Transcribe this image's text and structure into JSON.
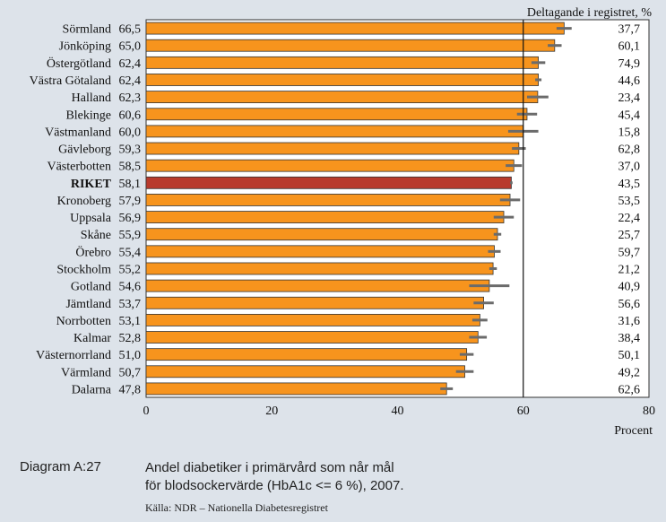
{
  "caption": {
    "label": "Diagram A:27",
    "title_line1": "Andel diabetiker i primärvård som når mål",
    "title_line2": "för blodsockervärde (HbA1c <= 6 %), 2007.",
    "source": "Källa: NDR – Nationella Diabetesregistret"
  },
  "chart_data": {
    "type": "bar",
    "orientation": "horizontal",
    "title": "",
    "xlabel": "Procent",
    "right_column_header": "Deltagande i registret, %",
    "xlim": [
      0,
      80
    ],
    "xticks": [
      "0",
      "20",
      "40",
      "60",
      "80"
    ],
    "reference_line": 60,
    "colors": {
      "bar": "#f7941d",
      "highlight": "#b83a2c",
      "error": "#6b6b6b",
      "background": "#ffffff"
    },
    "highlight_category": "RIKET",
    "categories": [
      "Sörmland",
      "Jönköping",
      "Östergötland",
      "Västra Götaland",
      "Halland",
      "Blekinge",
      "Västmanland",
      "Gävleborg",
      "Västerbotten",
      "RIKET",
      "Kronoberg",
      "Uppsala",
      "Skåne",
      "Örebro",
      "Stockholm",
      "Gotland",
      "Jämtland",
      "Norrbotten",
      "Kalmar",
      "Västernorrland",
      "Värmland",
      "Dalarna"
    ],
    "value_labels": [
      "66,5",
      "65,0",
      "62,4",
      "62,4",
      "62,3",
      "60,6",
      "60,0",
      "59,3",
      "58,5",
      "58,1",
      "57,9",
      "56,9",
      "55,9",
      "55,4",
      "55,2",
      "54,6",
      "53,7",
      "53,1",
      "52,8",
      "51,0",
      "50,7",
      "47,8"
    ],
    "values": [
      66.5,
      65.0,
      62.4,
      62.4,
      62.3,
      60.6,
      60.0,
      59.3,
      58.5,
      58.1,
      57.9,
      56.9,
      55.9,
      55.4,
      55.2,
      54.6,
      53.7,
      53.1,
      52.8,
      51.0,
      50.7,
      47.8
    ],
    "ci_low": [
      65.3,
      63.9,
      61.3,
      61.9,
      60.6,
      59.0,
      57.6,
      58.2,
      57.2,
      57.9,
      56.3,
      55.3,
      55.3,
      54.4,
      54.6,
      51.4,
      52.1,
      51.9,
      51.4,
      49.9,
      49.3,
      46.8
    ],
    "ci_high": [
      67.7,
      66.1,
      63.5,
      62.9,
      64.0,
      62.2,
      62.4,
      60.4,
      59.8,
      58.3,
      59.5,
      58.5,
      56.5,
      56.4,
      55.8,
      57.8,
      55.3,
      54.3,
      54.2,
      52.1,
      52.1,
      48.8
    ],
    "participation_labels": [
      "37,7",
      "60,1",
      "74,9",
      "44,6",
      "23,4",
      "45,4",
      "15,8",
      "62,8",
      "37,0",
      "43,5",
      "53,5",
      "22,4",
      "25,7",
      "59,7",
      "21,2",
      "40,9",
      "56,6",
      "31,6",
      "38,4",
      "50,1",
      "49,2",
      "62,6"
    ]
  }
}
